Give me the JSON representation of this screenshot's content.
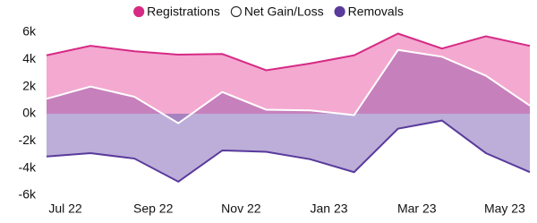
{
  "chart_data": {
    "type": "area",
    "categories": [
      "Jul 22",
      null,
      "Sep 22",
      null,
      "Nov 22",
      null,
      "Jan 23",
      null,
      "Mar 23",
      null,
      "May 23",
      null
    ],
    "series": [
      {
        "name": "Registrations",
        "color": "#d62a85",
        "fill": "#f4a9d0",
        "values": [
          4.3,
          5.0,
          4.6,
          4.35,
          4.4,
          3.2,
          3.7,
          4.3,
          5.9,
          4.8,
          5.7,
          5.0
        ]
      },
      {
        "name": "Net Gain/Loss",
        "color": "#ffffff",
        "fill": "#8e4fa3",
        "values": [
          1.1,
          2.0,
          1.25,
          -0.7,
          1.6,
          0.3,
          0.25,
          -0.1,
          4.7,
          4.2,
          2.8,
          0.6
        ]
      },
      {
        "name": "Removals",
        "color": "#5a3a9c",
        "fill": "#bcaed8",
        "values": [
          -3.15,
          -2.9,
          -3.3,
          -5.0,
          -2.7,
          -2.8,
          -3.35,
          -4.3,
          -1.1,
          -0.5,
          -2.9,
          -4.3
        ]
      }
    ],
    "ylim": [
      -6,
      6
    ],
    "yticks": [
      {
        "value": -6,
        "label": "-6k"
      },
      {
        "value": -4,
        "label": "-4k"
      },
      {
        "value": -2,
        "label": "-2k"
      },
      {
        "value": 0,
        "label": "0k"
      },
      {
        "value": 2,
        "label": "2k"
      },
      {
        "value": 4,
        "label": "4k"
      },
      {
        "value": 6,
        "label": "6k"
      }
    ],
    "legend": "top"
  }
}
